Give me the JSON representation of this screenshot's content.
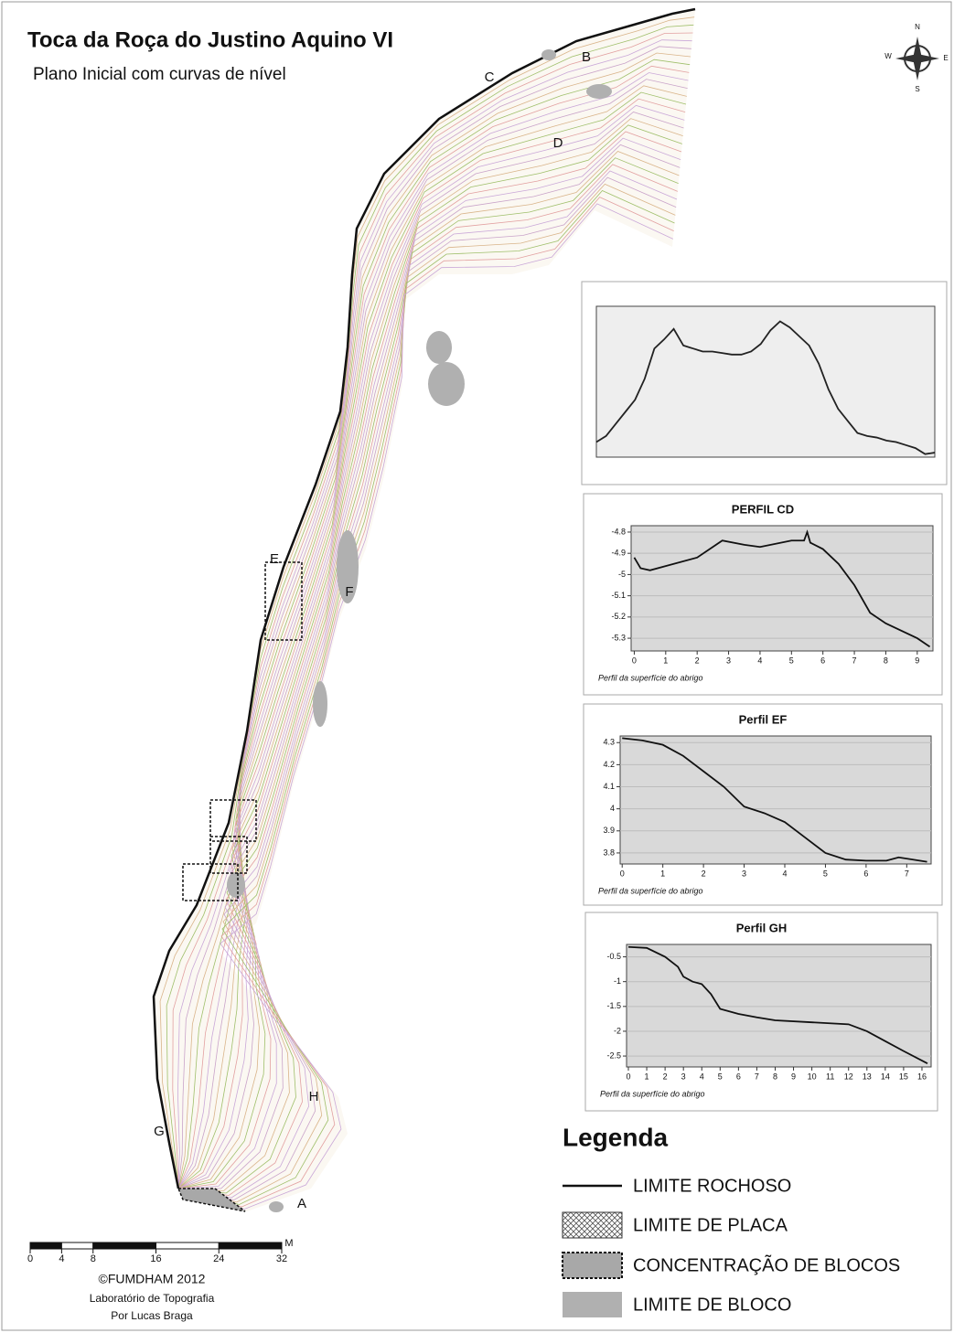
{
  "header": {
    "title": "Toca da Roça do Justino Aquino VI",
    "subtitle": "Plano Inicial com curvas de nível"
  },
  "compass": {
    "n": "N",
    "s": "S",
    "e": "E",
    "w": "W"
  },
  "map": {
    "labels": [
      "A",
      "B",
      "C",
      "D",
      "E",
      "F",
      "G",
      "H"
    ]
  },
  "chart_data": [
    {
      "type": "line",
      "x": [
        0,
        1,
        2,
        3,
        4,
        5,
        6,
        7,
        8,
        9,
        10,
        11,
        12,
        13,
        14,
        15,
        16,
        17,
        18,
        19,
        20,
        21,
        22,
        23,
        24,
        25,
        26,
        27,
        28,
        29,
        30,
        31,
        32,
        33,
        34,
        35
      ],
      "values": [
        10,
        14,
        22,
        30,
        38,
        52,
        72,
        78,
        85,
        74,
        72,
        70,
        70,
        69,
        68,
        68,
        70,
        75,
        84,
        90,
        86,
        80,
        74,
        62,
        45,
        32,
        24,
        16,
        14,
        13,
        11,
        10,
        8,
        6,
        2,
        3
      ],
      "xlim": [
        0,
        35
      ],
      "ylim": [
        0,
        100
      ],
      "color": "#222222"
    },
    {
      "type": "line",
      "title": "PERFIL CD",
      "x_label": "Perfil da superfície do abrigo",
      "x": [
        0,
        0.2,
        0.5,
        1,
        2,
        2.8,
        3.5,
        4,
        5,
        5.4,
        5.5,
        5.6,
        6,
        6.5,
        7,
        7.5,
        8,
        9,
        9.4
      ],
      "values": [
        -4.92,
        -4.97,
        -4.98,
        -4.96,
        -4.92,
        -4.84,
        -4.86,
        -4.87,
        -4.84,
        -4.84,
        -4.8,
        -4.85,
        -4.88,
        -4.95,
        -5.05,
        -5.18,
        -5.23,
        -5.3,
        -5.34
      ],
      "xlim": [
        -0.1,
        9.5
      ],
      "ylim": [
        -5.36,
        -4.77
      ],
      "xticks": [
        0,
        1,
        2,
        3,
        4,
        5,
        6,
        7,
        8,
        9
      ],
      "yticks": [
        -4.8,
        -4.9,
        -5,
        -5.1,
        -5.2,
        -5.3
      ],
      "grid": true,
      "color": "#111111"
    },
    {
      "type": "line",
      "title": "Perfil EF",
      "x_label": "Perfil da superfície do abrigo",
      "x": [
        0,
        0.5,
        1,
        1.5,
        2,
        2.5,
        3,
        3.5,
        4,
        4.5,
        5,
        5.5,
        6,
        6.5,
        6.8,
        7.5
      ],
      "values": [
        4.32,
        4.31,
        4.29,
        4.24,
        4.17,
        4.1,
        4.01,
        3.98,
        3.94,
        3.87,
        3.8,
        3.77,
        3.765,
        3.765,
        3.78,
        3.76
      ],
      "xlim": [
        -0.05,
        7.6
      ],
      "ylim": [
        3.75,
        4.33
      ],
      "xticks": [
        0,
        1,
        2,
        3,
        4,
        5,
        6,
        7
      ],
      "yticks": [
        4.3,
        4.2,
        4.1,
        4,
        3.9,
        3.8
      ],
      "grid": true,
      "color": "#111111"
    },
    {
      "type": "line",
      "title": "Perfil GH",
      "x_label": "Perfil da superfície do abrigo",
      "x": [
        0,
        1,
        2,
        2.7,
        3,
        3.5,
        4,
        4.5,
        5,
        6,
        7,
        8,
        10,
        12,
        13,
        14,
        15,
        16.3
      ],
      "values": [
        -0.3,
        -0.32,
        -0.5,
        -0.7,
        -0.9,
        -1.0,
        -1.05,
        -1.25,
        -1.55,
        -1.65,
        -1.72,
        -1.78,
        -1.82,
        -1.86,
        -2.0,
        -2.2,
        -2.4,
        -2.65
      ],
      "xlim": [
        -0.1,
        16.5
      ],
      "ylim": [
        -2.72,
        -0.25
      ],
      "xticks": [
        0,
        1,
        2,
        3,
        4,
        5,
        6,
        7,
        8,
        9,
        10,
        11,
        12,
        13,
        14,
        15,
        16
      ],
      "yticks": [
        -0.5,
        -1,
        -1.5,
        -2,
        -2.5
      ],
      "grid": true,
      "color": "#111111"
    }
  ],
  "legend": {
    "title": "Legenda",
    "items": [
      "LIMITE ROCHOSO",
      "LIMITE DE PLACA",
      "CONCENTRAÇÃO DE BLOCOS",
      "LIMITE DE BLOCO"
    ]
  },
  "scale_bar": {
    "ticks": [
      0,
      4,
      8,
      16,
      24,
      32
    ],
    "unit": "M"
  },
  "credits": [
    "©FUMDHAM 2012",
    "Laboratório de Topografia",
    "Por Lucas Braga"
  ]
}
